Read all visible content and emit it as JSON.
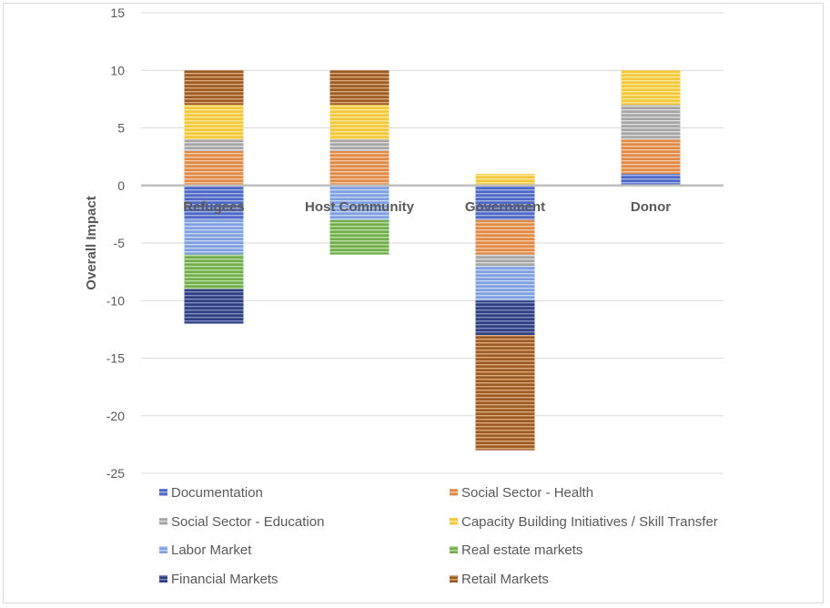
{
  "chart_data": {
    "type": "bar",
    "stacked": true,
    "title": "",
    "xlabel": "",
    "ylabel": "Overall Impact",
    "ylim": [
      -25,
      15
    ],
    "yticks": [
      15,
      10,
      5,
      0,
      -5,
      -10,
      -15,
      -20,
      -25
    ],
    "grid": true,
    "legend_position": "bottom",
    "categories": [
      "Refugees",
      "Host Community",
      "Government",
      "Donor"
    ],
    "series": [
      {
        "name": "Documentation",
        "color": "#4f68c4",
        "stripe": "#a3b2e6",
        "values": [
          -3,
          0,
          -3,
          1
        ]
      },
      {
        "name": "Social Sector - Health",
        "color": "#e08a48",
        "stripe": "#f6c9a3",
        "values": [
          3,
          3,
          -3,
          3
        ]
      },
      {
        "name": "Social Sector - Education",
        "color": "#a5a5a5",
        "stripe": "#dcdcdc",
        "values": [
          1,
          1,
          -1,
          3
        ]
      },
      {
        "name": "Capacity Building Initiatives / Skill Transfer",
        "color": "#f2c83a",
        "stripe": "#fbe79a",
        "values": [
          3,
          3,
          1,
          3
        ]
      },
      {
        "name": "Labor Market",
        "color": "#7e9fe0",
        "stripe": "#c6d5f4",
        "values": [
          -3,
          -3,
          -3,
          0
        ]
      },
      {
        "name": "Real estate markets",
        "color": "#72ad4c",
        "stripe": "#bcdca6",
        "values": [
          -3,
          -3,
          0,
          0
        ]
      },
      {
        "name": "Financial Markets",
        "color": "#2f3f80",
        "stripe": "#7f8cc0",
        "values": [
          -3,
          0,
          -3,
          0
        ]
      },
      {
        "name": "Retail Markets",
        "color": "#9c5a25",
        "stripe": "#dca97a",
        "values": [
          3,
          3,
          -10,
          0
        ]
      }
    ]
  }
}
